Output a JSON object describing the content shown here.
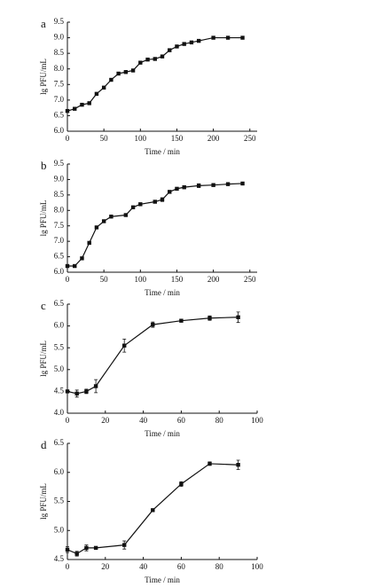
{
  "chart_data": [
    {
      "type": "line",
      "label": "a",
      "xlabel": "Time / min",
      "ylabel": "lg PFU/mL",
      "x": [
        0,
        10,
        20,
        30,
        40,
        50,
        60,
        70,
        80,
        90,
        100,
        110,
        120,
        130,
        140,
        150,
        160,
        170,
        180,
        200,
        220,
        240
      ],
      "values": [
        6.65,
        6.72,
        6.85,
        6.9,
        7.2,
        7.4,
        7.65,
        7.85,
        7.9,
        7.95,
        8.2,
        8.3,
        8.32,
        8.4,
        8.6,
        8.72,
        8.8,
        8.85,
        8.9,
        9.0,
        9.0,
        9.0
      ],
      "color": "#111111",
      "xlim": [
        0,
        260
      ],
      "xticks": [
        0,
        50,
        100,
        150,
        200,
        250
      ],
      "ylim": [
        6,
        9.5
      ],
      "yticks": [
        {
          "value": 6,
          "label": "6.0"
        },
        6.5,
        {
          "value": 7,
          "label": "7.0"
        },
        7.5,
        {
          "value": 8,
          "label": "8.0"
        },
        8.5,
        {
          "value": 9,
          "label": "9.0"
        },
        9.5
      ]
    },
    {
      "type": "line",
      "label": "b",
      "xlabel": "Time / min",
      "ylabel": "lg PFU/mL",
      "x": [
        0,
        10,
        20,
        30,
        40,
        50,
        60,
        80,
        90,
        100,
        120,
        130,
        140,
        150,
        160,
        180,
        200,
        220,
        240
      ],
      "values": [
        6.2,
        6.2,
        6.45,
        6.95,
        7.45,
        7.65,
        7.8,
        7.85,
        8.1,
        8.2,
        8.28,
        8.35,
        8.6,
        8.7,
        8.75,
        8.8,
        8.82,
        8.85,
        8.87
      ],
      "errors": [
        0.03,
        0.03,
        0.04,
        0.03,
        0.03,
        0.04,
        0.03,
        0.04,
        0.03,
        0.03,
        0.04,
        0.06,
        0.04,
        0.03,
        0.05,
        0.06,
        0.04,
        0.03,
        0.03
      ],
      "color": "#111111",
      "xlim": [
        0,
        260
      ],
      "xticks": [
        0,
        50,
        100,
        150,
        200,
        250
      ],
      "ylim": [
        6,
        9.5
      ],
      "yticks": [
        {
          "value": 6,
          "label": "6.0"
        },
        6.5,
        {
          "value": 7,
          "label": "7.0"
        },
        7.5,
        {
          "value": 8,
          "label": "8.0"
        },
        8.5,
        {
          "value": 9,
          "label": "9.0"
        },
        9.5
      ]
    },
    {
      "type": "line",
      "label": "c",
      "xlabel": "Time / min",
      "ylabel": "lg PFU/mL",
      "x": [
        0,
        5,
        10,
        15,
        30,
        45,
        60,
        75,
        90
      ],
      "values": [
        4.5,
        4.45,
        4.5,
        4.62,
        5.55,
        6.03,
        6.12,
        6.18,
        6.2
      ],
      "errors": [
        0.03,
        0.08,
        0.05,
        0.15,
        0.15,
        0.06,
        0.02,
        0.05,
        0.12
      ],
      "color": "#111111",
      "xlim": [
        0,
        100
      ],
      "xticks": [
        0,
        20,
        40,
        60,
        80,
        100
      ],
      "ylim": [
        4,
        6.5
      ],
      "yticks": [
        {
          "value": 4,
          "label": "4.0"
        },
        4.5,
        {
          "value": 5,
          "label": "5.0"
        },
        5.5,
        {
          "value": 6,
          "label": "6.0"
        },
        6.5
      ]
    },
    {
      "type": "line",
      "label": "d",
      "xlabel": "Time / min",
      "ylabel": "lg PFU/mL",
      "x": [
        0,
        5,
        10,
        15,
        30,
        45,
        60,
        75,
        90
      ],
      "values": [
        4.67,
        4.6,
        4.7,
        4.7,
        4.75,
        5.35,
        5.8,
        6.15,
        6.13
      ],
      "errors": [
        0.05,
        0.04,
        0.05,
        0.02,
        0.07,
        0.01,
        0.04,
        0.03,
        0.08
      ],
      "color": "#111111",
      "xlim": [
        0,
        100
      ],
      "xticks": [
        0,
        20,
        40,
        60,
        80,
        100
      ],
      "ylim": [
        4.5,
        6.5
      ],
      "yticks": [
        4.5,
        {
          "value": 5,
          "label": "5.0"
        },
        5.5,
        {
          "value": 6,
          "label": "6.0"
        },
        6.5
      ]
    }
  ]
}
